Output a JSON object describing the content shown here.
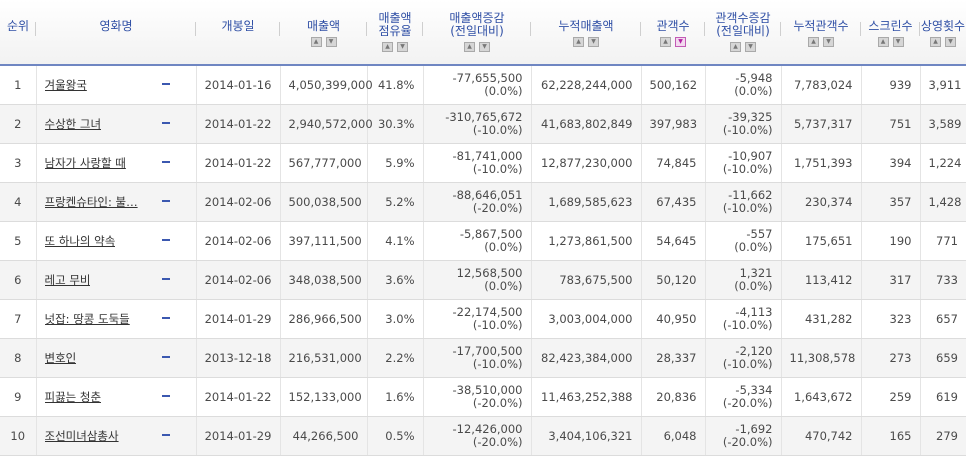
{
  "headers": {
    "rank": "순위",
    "title": "영화명",
    "release": "개봉일",
    "sales": "매출액",
    "share": [
      "매출액",
      "점유율"
    ],
    "sales_change": [
      "매출액증감",
      "(전일대비)"
    ],
    "cum_sales": "누적매출액",
    "audience": "관객수",
    "aud_change": [
      "관객수증감",
      "(전일대비)"
    ],
    "cum_audience": "누적관객수",
    "screens": "스크린수",
    "shows": "상영횟수"
  },
  "sort_buttons": {
    "up": "▲",
    "down": "▼",
    "active_column": "audience",
    "active_direction": "down"
  },
  "colors": {
    "header_text": "#2f4fa5",
    "header_border": "#6f86c2",
    "row_alt": "#f4f4f4",
    "active_sort": "#b21fa2"
  },
  "rows": [
    {
      "rank": "1",
      "title": "겨울왕국",
      "release": "2014-01-16",
      "sales": "4,050,399,000",
      "share": "41.8%",
      "sales_change": "-77,655,500",
      "sales_change_pct": "(0.0%)",
      "cum_sales": "62,228,244,000",
      "audience": "500,162",
      "aud_change": "-5,948",
      "aud_change_pct": "(0.0%)",
      "cum_audience": "7,783,024",
      "screens": "939",
      "shows": "3,911"
    },
    {
      "rank": "2",
      "title": "수상한 그녀",
      "release": "2014-01-22",
      "sales": "2,940,572,000",
      "share": "30.3%",
      "sales_change": "-310,765,672",
      "sales_change_pct": "(-10.0%)",
      "cum_sales": "41,683,802,849",
      "audience": "397,983",
      "aud_change": "-39,325",
      "aud_change_pct": "(-10.0%)",
      "cum_audience": "5,737,317",
      "screens": "751",
      "shows": "3,589"
    },
    {
      "rank": "3",
      "title": "남자가 사랑할 때",
      "release": "2014-01-22",
      "sales": "567,777,000",
      "share": "5.9%",
      "sales_change": "-81,741,000",
      "sales_change_pct": "(-10.0%)",
      "cum_sales": "12,877,230,000",
      "audience": "74,845",
      "aud_change": "-10,907",
      "aud_change_pct": "(-10.0%)",
      "cum_audience": "1,751,393",
      "screens": "394",
      "shows": "1,224"
    },
    {
      "rank": "4",
      "title": "프랑켄슈타인: 불…",
      "release": "2014-02-06",
      "sales": "500,038,500",
      "share": "5.2%",
      "sales_change": "-88,646,051",
      "sales_change_pct": "(-20.0%)",
      "cum_sales": "1,689,585,623",
      "audience": "67,435",
      "aud_change": "-11,662",
      "aud_change_pct": "(-10.0%)",
      "cum_audience": "230,374",
      "screens": "357",
      "shows": "1,428"
    },
    {
      "rank": "5",
      "title": "또 하나의 약속",
      "release": "2014-02-06",
      "sales": "397,111,500",
      "share": "4.1%",
      "sales_change": "-5,867,500",
      "sales_change_pct": "(0.0%)",
      "cum_sales": "1,273,861,500",
      "audience": "54,645",
      "aud_change": "-557",
      "aud_change_pct": "(0.0%)",
      "cum_audience": "175,651",
      "screens": "190",
      "shows": "771"
    },
    {
      "rank": "6",
      "title": "레고 무비",
      "release": "2014-02-06",
      "sales": "348,038,500",
      "share": "3.6%",
      "sales_change": "12,568,500",
      "sales_change_pct": "(0.0%)",
      "cum_sales": "783,675,500",
      "audience": "50,120",
      "aud_change": "1,321",
      "aud_change_pct": "(0.0%)",
      "cum_audience": "113,412",
      "screens": "317",
      "shows": "733"
    },
    {
      "rank": "7",
      "title": "넛잡: 땅콩 도둑들",
      "release": "2014-01-29",
      "sales": "286,966,500",
      "share": "3.0%",
      "sales_change": "-22,174,500",
      "sales_change_pct": "(-10.0%)",
      "cum_sales": "3,003,004,000",
      "audience": "40,950",
      "aud_change": "-4,113",
      "aud_change_pct": "(-10.0%)",
      "cum_audience": "431,282",
      "screens": "323",
      "shows": "657"
    },
    {
      "rank": "8",
      "title": "변호인",
      "release": "2013-12-18",
      "sales": "216,531,000",
      "share": "2.2%",
      "sales_change": "-17,700,500",
      "sales_change_pct": "(-10.0%)",
      "cum_sales": "82,423,384,000",
      "audience": "28,337",
      "aud_change": "-2,120",
      "aud_change_pct": "(-10.0%)",
      "cum_audience": "11,308,578",
      "screens": "273",
      "shows": "659"
    },
    {
      "rank": "9",
      "title": "피끓는 청춘",
      "release": "2014-01-22",
      "sales": "152,133,000",
      "share": "1.6%",
      "sales_change": "-38,510,000",
      "sales_change_pct": "(-20.0%)",
      "cum_sales": "11,463,252,388",
      "audience": "20,836",
      "aud_change": "-5,334",
      "aud_change_pct": "(-20.0%)",
      "cum_audience": "1,643,672",
      "screens": "259",
      "shows": "619"
    },
    {
      "rank": "10",
      "title": "조선미녀삼총사",
      "release": "2014-01-29",
      "sales": "44,266,500",
      "share": "0.5%",
      "sales_change": "-12,426,000",
      "sales_change_pct": "(-20.0%)",
      "cum_sales": "3,404,106,321",
      "audience": "6,048",
      "aud_change": "-1,692",
      "aud_change_pct": "(-20.0%)",
      "cum_audience": "470,742",
      "screens": "165",
      "shows": "279"
    }
  ]
}
